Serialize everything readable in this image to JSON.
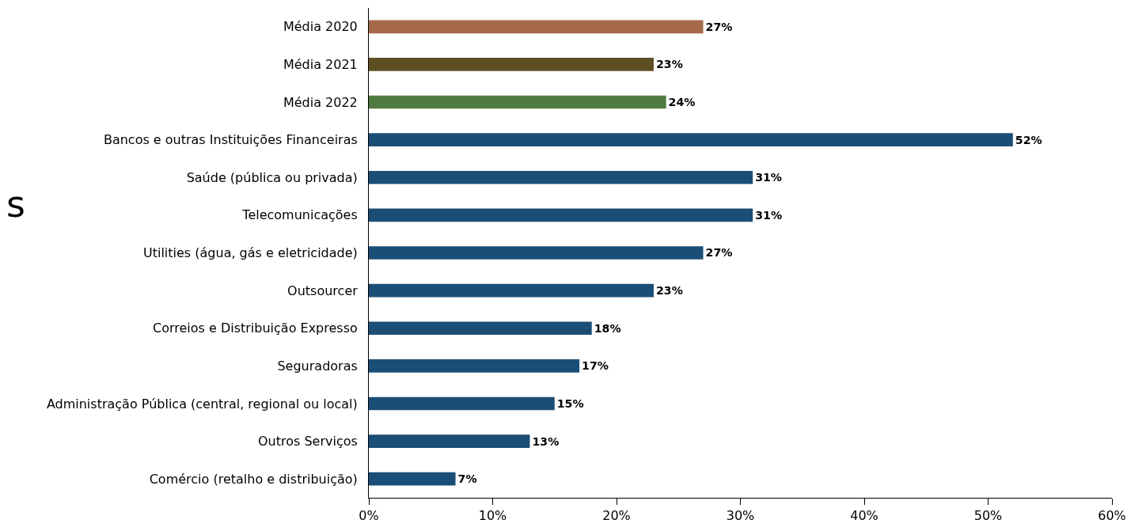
{
  "chart_data": {
    "type": "bar",
    "orientation": "horizontal",
    "categories": [
      "Média 2020",
      "Média 2021",
      "Média 2022",
      "Bancos e outras Instituições Financeiras",
      "Saúde (pública ou privada)",
      "Telecomunicações",
      "Utilities (água, gás e eletricidade)",
      "Outsourcer",
      "Correios e Distribuição Expresso",
      "Seguradoras",
      "Administração Pública (central, regional ou local)",
      "Outros Serviços",
      "Comércio (retalho e distribuição)"
    ],
    "values": [
      27,
      23,
      24,
      52,
      31,
      31,
      27,
      23,
      18,
      17,
      15,
      13,
      7
    ],
    "value_labels": [
      "27%",
      "23%",
      "24%",
      "52%",
      "31%",
      "31%",
      "27%",
      "23%",
      "18%",
      "17%",
      "15%",
      "13%",
      "7%"
    ],
    "colors": [
      "#a5694a",
      "#5e4f22",
      "#507a3f",
      "#1b4e76",
      "#1b4e76",
      "#1b4e76",
      "#1b4e76",
      "#1b4e76",
      "#1b4e76",
      "#1b4e76",
      "#1b4e76",
      "#1b4e76",
      "#1b4e76"
    ],
    "xlim": [
      0,
      60
    ],
    "xticks": [
      {
        "value": 0,
        "label": "0%"
      },
      {
        "value": 10,
        "label": "10%"
      },
      {
        "value": 20,
        "label": "20%"
      },
      {
        "value": 30,
        "label": "30%"
      },
      {
        "value": 40,
        "label": "40%"
      },
      {
        "value": 50,
        "label": "50%"
      },
      {
        "value": 60,
        "label": "60%"
      }
    ],
    "grid": false,
    "annotations": [
      "s"
    ]
  }
}
